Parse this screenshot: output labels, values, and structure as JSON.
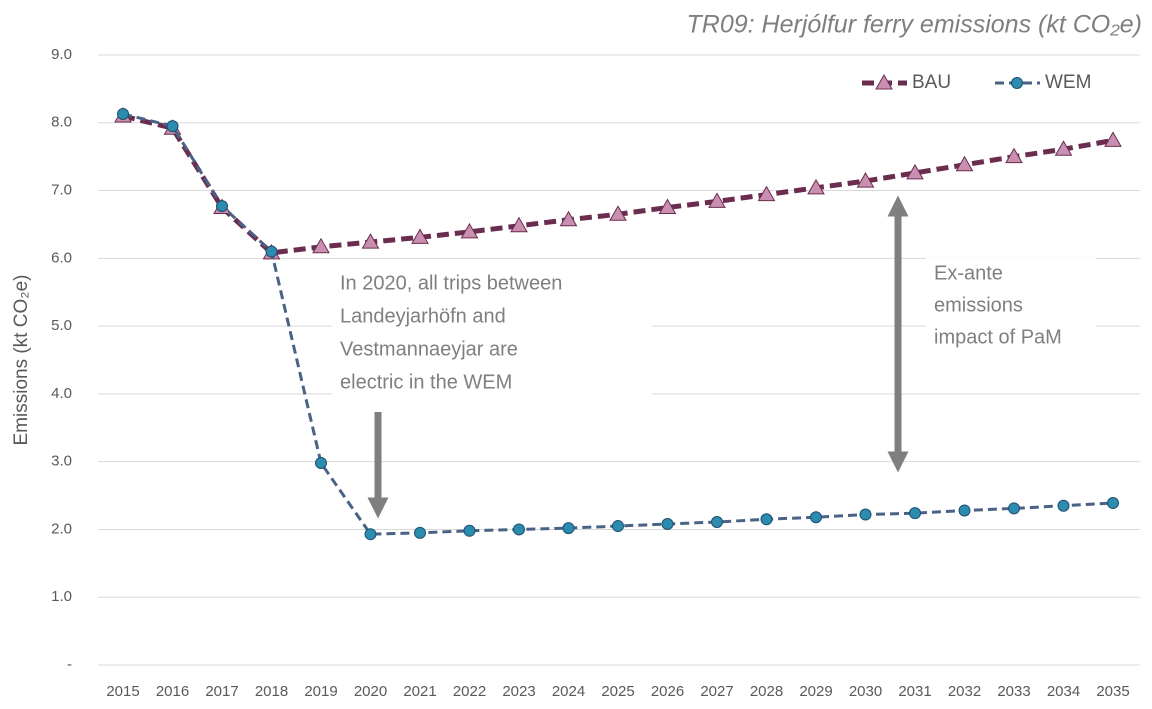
{
  "chart_data": {
    "type": "line",
    "title": "TR09: Herjólfur ferry emissions (kt CO₂e)",
    "y_label": "Emissions (kt CO₂e)",
    "categories": [
      "2015",
      "2016",
      "2017",
      "2018",
      "2019",
      "2020",
      "2021",
      "2022",
      "2023",
      "2024",
      "2025",
      "2026",
      "2027",
      "2028",
      "2029",
      "2030",
      "2031",
      "2032",
      "2033",
      "2034",
      "2035"
    ],
    "series": [
      {
        "name": "BAU",
        "color": "#6b2d4f",
        "marker_color": "#c98fb0",
        "marker": "triangle",
        "values": [
          8.1,
          7.92,
          6.75,
          6.08,
          6.17,
          6.24,
          6.31,
          6.39,
          6.48,
          6.57,
          6.65,
          6.75,
          6.84,
          6.94,
          7.04,
          7.14,
          7.26,
          7.38,
          7.5,
          7.61,
          7.74
        ]
      },
      {
        "name": "WEM",
        "color": "#4a6285",
        "marker_color": "#2b8cb0",
        "marker": "circle",
        "values": [
          8.13,
          7.95,
          6.77,
          6.1,
          2.98,
          1.93,
          1.95,
          1.98,
          2.0,
          2.02,
          2.05,
          2.08,
          2.11,
          2.15,
          2.18,
          2.22,
          2.24,
          2.28,
          2.31,
          2.35,
          2.39
        ]
      }
    ],
    "ylim": [
      0,
      9
    ],
    "yticks": [
      {
        "value": 0,
        "label": "-"
      },
      {
        "value": 1,
        "label": "1.0"
      },
      {
        "value": 2,
        "label": "2.0"
      },
      {
        "value": 3,
        "label": "3.0"
      },
      {
        "value": 4,
        "label": "4.0"
      },
      {
        "value": 5,
        "label": "5.0"
      },
      {
        "value": 6,
        "label": "6.0"
      },
      {
        "value": 7,
        "label": "7.0"
      },
      {
        "value": 8,
        "label": "8.0"
      },
      {
        "value": 9,
        "label": "9.0"
      }
    ],
    "grid": true,
    "legend": "top-right",
    "annotations": [
      {
        "lines": [
          "In 2020, all trips between",
          "Landeyjarhöfn and",
          "Vestmannaeyjar are",
          "electric in the WEM"
        ]
      },
      {
        "lines": [
          "Ex-ante",
          "emissions",
          "impact of PaM"
        ]
      }
    ]
  }
}
